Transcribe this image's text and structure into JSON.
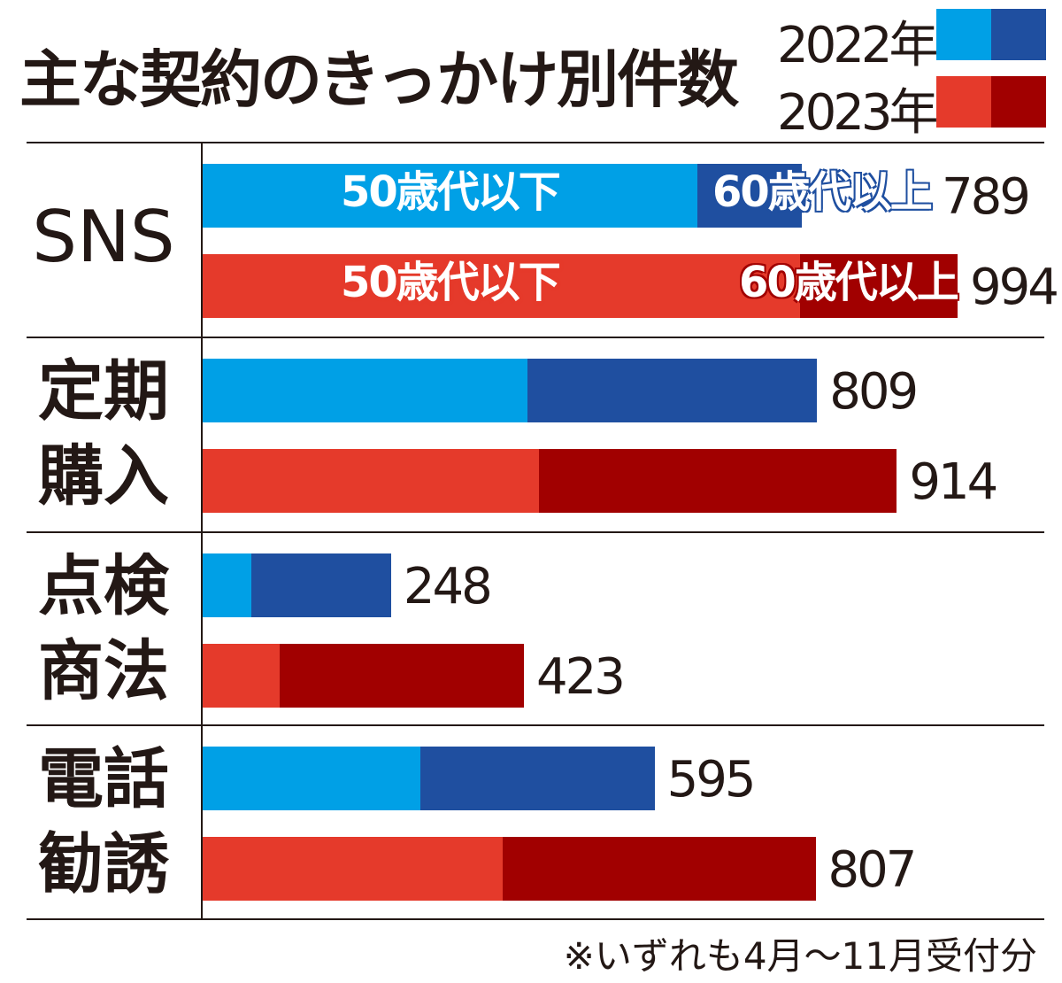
{
  "chart_data": {
    "type": "bar",
    "orientation": "horizontal-stacked",
    "title": "主な契約のきっかけ別件数",
    "categories": [
      "SNS",
      "定期購入",
      "点検商法",
      "電話勧誘"
    ],
    "years": [
      "2022年",
      "2023年"
    ],
    "segments": [
      "50歳代以下",
      "60歳代以上"
    ],
    "series": [
      {
        "name": "2022年",
        "totals": [
          789,
          809,
          248,
          595
        ],
        "under50s": [
          651,
          428,
          64,
          287
        ],
        "over60s": [
          138,
          381,
          184,
          308
        ],
        "colors": [
          "#00a0e6",
          "#1f4fa0"
        ]
      },
      {
        "name": "2023年",
        "totals": [
          994,
          914,
          423,
          807
        ],
        "under50s": [
          787,
          443,
          101,
          395
        ],
        "over60s": [
          207,
          471,
          322,
          412
        ],
        "colors": [
          "#e53a2b",
          "#a10000"
        ]
      }
    ],
    "xlim": [
      0,
      1000
    ],
    "grid": false,
    "legend": "top-right",
    "note": "※いずれも4月～11月受付分"
  }
}
